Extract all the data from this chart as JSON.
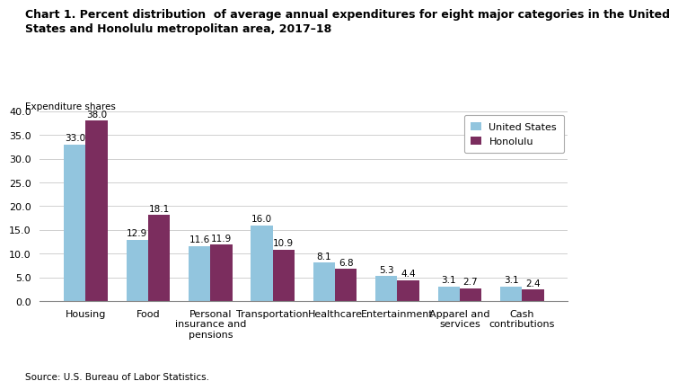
{
  "title": "Chart 1. Percent distribution  of average annual expenditures for eight major categories in the United\nStates and Honolulu metropolitan area, 2017–18",
  "ylabel": "Expenditure shares",
  "source": "Source: U.S. Bureau of Labor Statistics.",
  "categories": [
    "Housing",
    "Food",
    "Personal\ninsurance and\npensions",
    "Transportation",
    "Healthcare",
    "Entertainment",
    "Apparel and\nservices",
    "Cash\ncontributions"
  ],
  "us_values": [
    33.0,
    12.9,
    11.6,
    16.0,
    8.1,
    5.3,
    3.1,
    3.1
  ],
  "honolulu_values": [
    38.0,
    18.1,
    11.9,
    10.9,
    6.8,
    4.4,
    2.7,
    2.4
  ],
  "us_color": "#92C5DE",
  "honolulu_color": "#7B2D5E",
  "ylim": [
    0,
    40
  ],
  "yticks": [
    0.0,
    5.0,
    10.0,
    15.0,
    20.0,
    25.0,
    30.0,
    35.0,
    40.0
  ],
  "legend_us": "United States",
  "legend_honolulu": "Honolulu",
  "bar_width": 0.35,
  "title_fontsize": 9.0,
  "label_fontsize": 8.0,
  "tick_fontsize": 8.0,
  "value_fontsize": 7.5,
  "source_fontsize": 7.5
}
